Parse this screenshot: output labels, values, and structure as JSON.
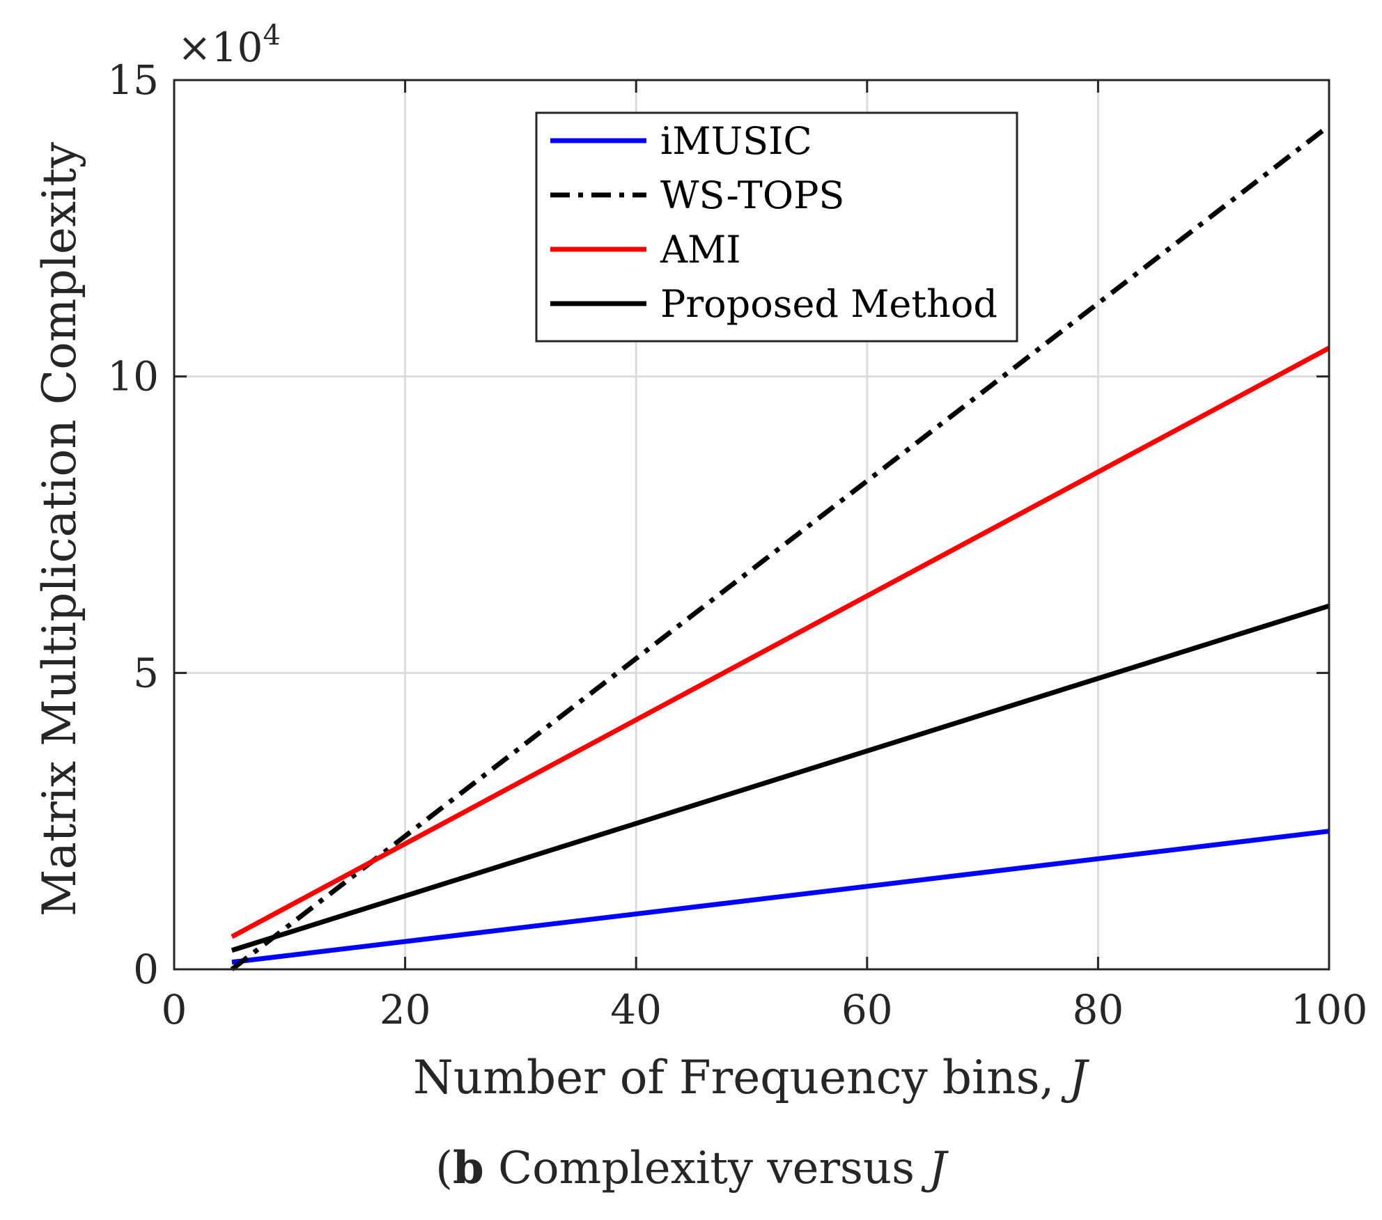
{
  "chart_data": {
    "type": "line",
    "xlabel": "Number of Frequency bins, ",
    "xlabel_var": "J",
    "ylabel": "Matrix Multiplication Complexity",
    "y_multiplier_base": "×10",
    "y_multiplier_exp": "4",
    "xlim": [
      0,
      100
    ],
    "ylim": [
      0,
      150000
    ],
    "x_ticks": [
      0,
      20,
      40,
      60,
      80,
      100
    ],
    "x_tick_labels": [
      "0",
      "20",
      "40",
      "60",
      "80",
      "100"
    ],
    "y_ticks": [
      0,
      50000,
      100000,
      150000
    ],
    "y_tick_labels": [
      "0",
      "5",
      "10",
      "15"
    ],
    "grid": true,
    "legend_position": "top-center",
    "x": [
      5,
      100
    ],
    "series": [
      {
        "name": "iMUSIC",
        "color": "#0000ff",
        "style": "solid",
        "values": [
          1200,
          23300
        ]
      },
      {
        "name": "WS-TOPS",
        "color": "#000000",
        "style": "dashdot",
        "values": [
          0,
          142300
        ]
      },
      {
        "name": "AMI",
        "color": "#ff0000",
        "style": "solid",
        "values": [
          5500,
          104800
        ]
      },
      {
        "name": "Proposed Method",
        "color": "#000000",
        "style": "solid",
        "values": [
          3200,
          61300
        ]
      }
    ]
  },
  "caption": {
    "label": "b",
    "text": " Complexity versus ",
    "var": "J"
  }
}
